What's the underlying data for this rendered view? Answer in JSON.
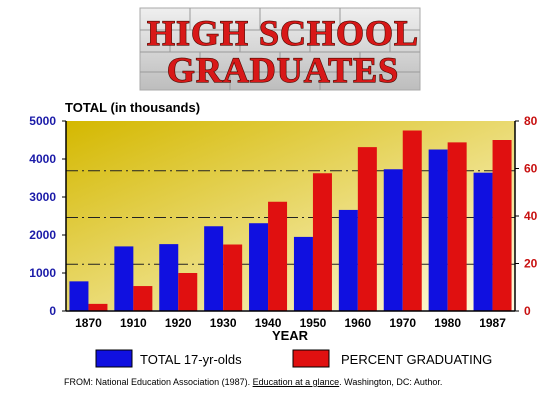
{
  "title_lines": [
    "HIGH SCHOOL",
    "GRADUATES"
  ],
  "source": {
    "prefix": "FROM:  National Education Association (1987). ",
    "title": "Education at a glance",
    "suffix": ".  Washington, DC:  Author."
  },
  "chart_data": {
    "type": "bar",
    "ylabel": "TOTAL (in thousands)",
    "xlabel": "YEAR",
    "categories": [
      "1870",
      "1910",
      "1920",
      "1930",
      "1940",
      "1950",
      "1960",
      "1970",
      "1980",
      "1987"
    ],
    "ylim": [
      0,
      5000
    ],
    "y2lim": [
      0,
      80
    ],
    "yticks": [
      0,
      1000,
      2000,
      3000,
      4000,
      5000
    ],
    "y2ticks": [
      0,
      20,
      40,
      60,
      80
    ],
    "legend_position": "bottom",
    "series": [
      {
        "name": "TOTAL 17-yr-olds",
        "axis": "left",
        "color": "#1010e0",
        "values": [
          780,
          1700,
          1760,
          2230,
          2310,
          1950,
          2660,
          3730,
          4250,
          3640
        ]
      },
      {
        "name": "PERCENT GRADUATING",
        "axis": "right",
        "color": "#e01010",
        "values": [
          3,
          10.5,
          16,
          28,
          46,
          58,
          69,
          76,
          71,
          72
        ]
      }
    ],
    "reference_lines": [
      1230,
      2460,
      3690
    ],
    "colors": {
      "plot_gradient_top": "#d4b800",
      "plot_gradient_bottom": "#fffbe0",
      "left_axis": "#1a1aa8",
      "right_axis": "#c81010"
    }
  }
}
